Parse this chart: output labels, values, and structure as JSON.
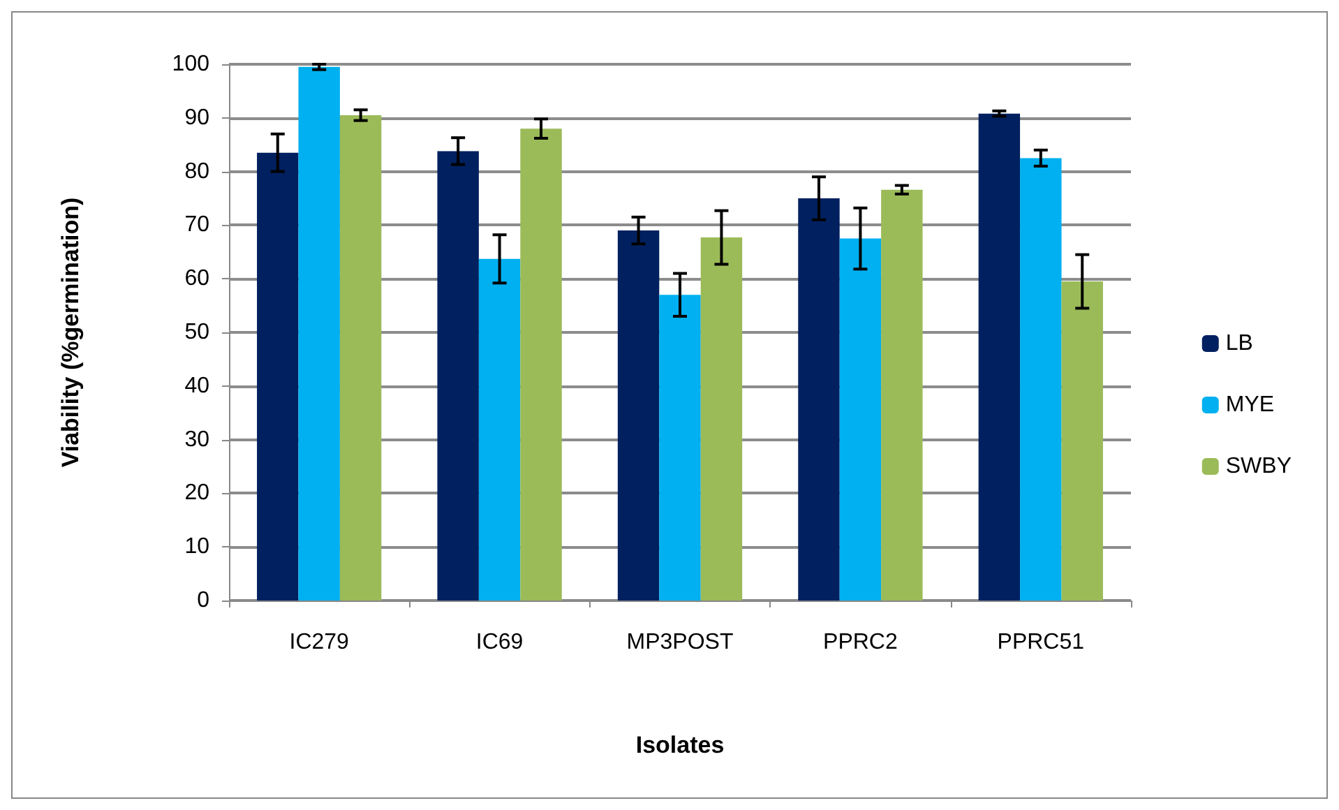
{
  "chart_data": {
    "type": "bar",
    "xlabel": "Isolates",
    "ylabel": "Viability (%germination)",
    "categories": [
      "IC279",
      "IC69",
      "MP3POST",
      "PPRC2",
      "PPRC51"
    ],
    "series": [
      {
        "name": "LB",
        "color": "#002060",
        "values": [
          83.5,
          83.8,
          69,
          75,
          90.8
        ],
        "errors": [
          3.5,
          2.5,
          2.5,
          4,
          0.5
        ]
      },
      {
        "name": "MYE",
        "color": "#00b0f0",
        "values": [
          99.5,
          63.7,
          57,
          67.5,
          82.5
        ],
        "errors": [
          0.5,
          4.5,
          4,
          5.7,
          1.5
        ]
      },
      {
        "name": "SWBY",
        "color": "#9bbb59",
        "values": [
          90.5,
          88,
          67.7,
          76.6,
          59.5
        ],
        "errors": [
          1,
          1.8,
          5,
          0.8,
          5
        ]
      }
    ],
    "ylim": [
      0,
      100
    ],
    "yticks": [
      0,
      10,
      20,
      30,
      40,
      50,
      60,
      70,
      80,
      90,
      100
    ],
    "grid": "y",
    "legend": "right"
  }
}
